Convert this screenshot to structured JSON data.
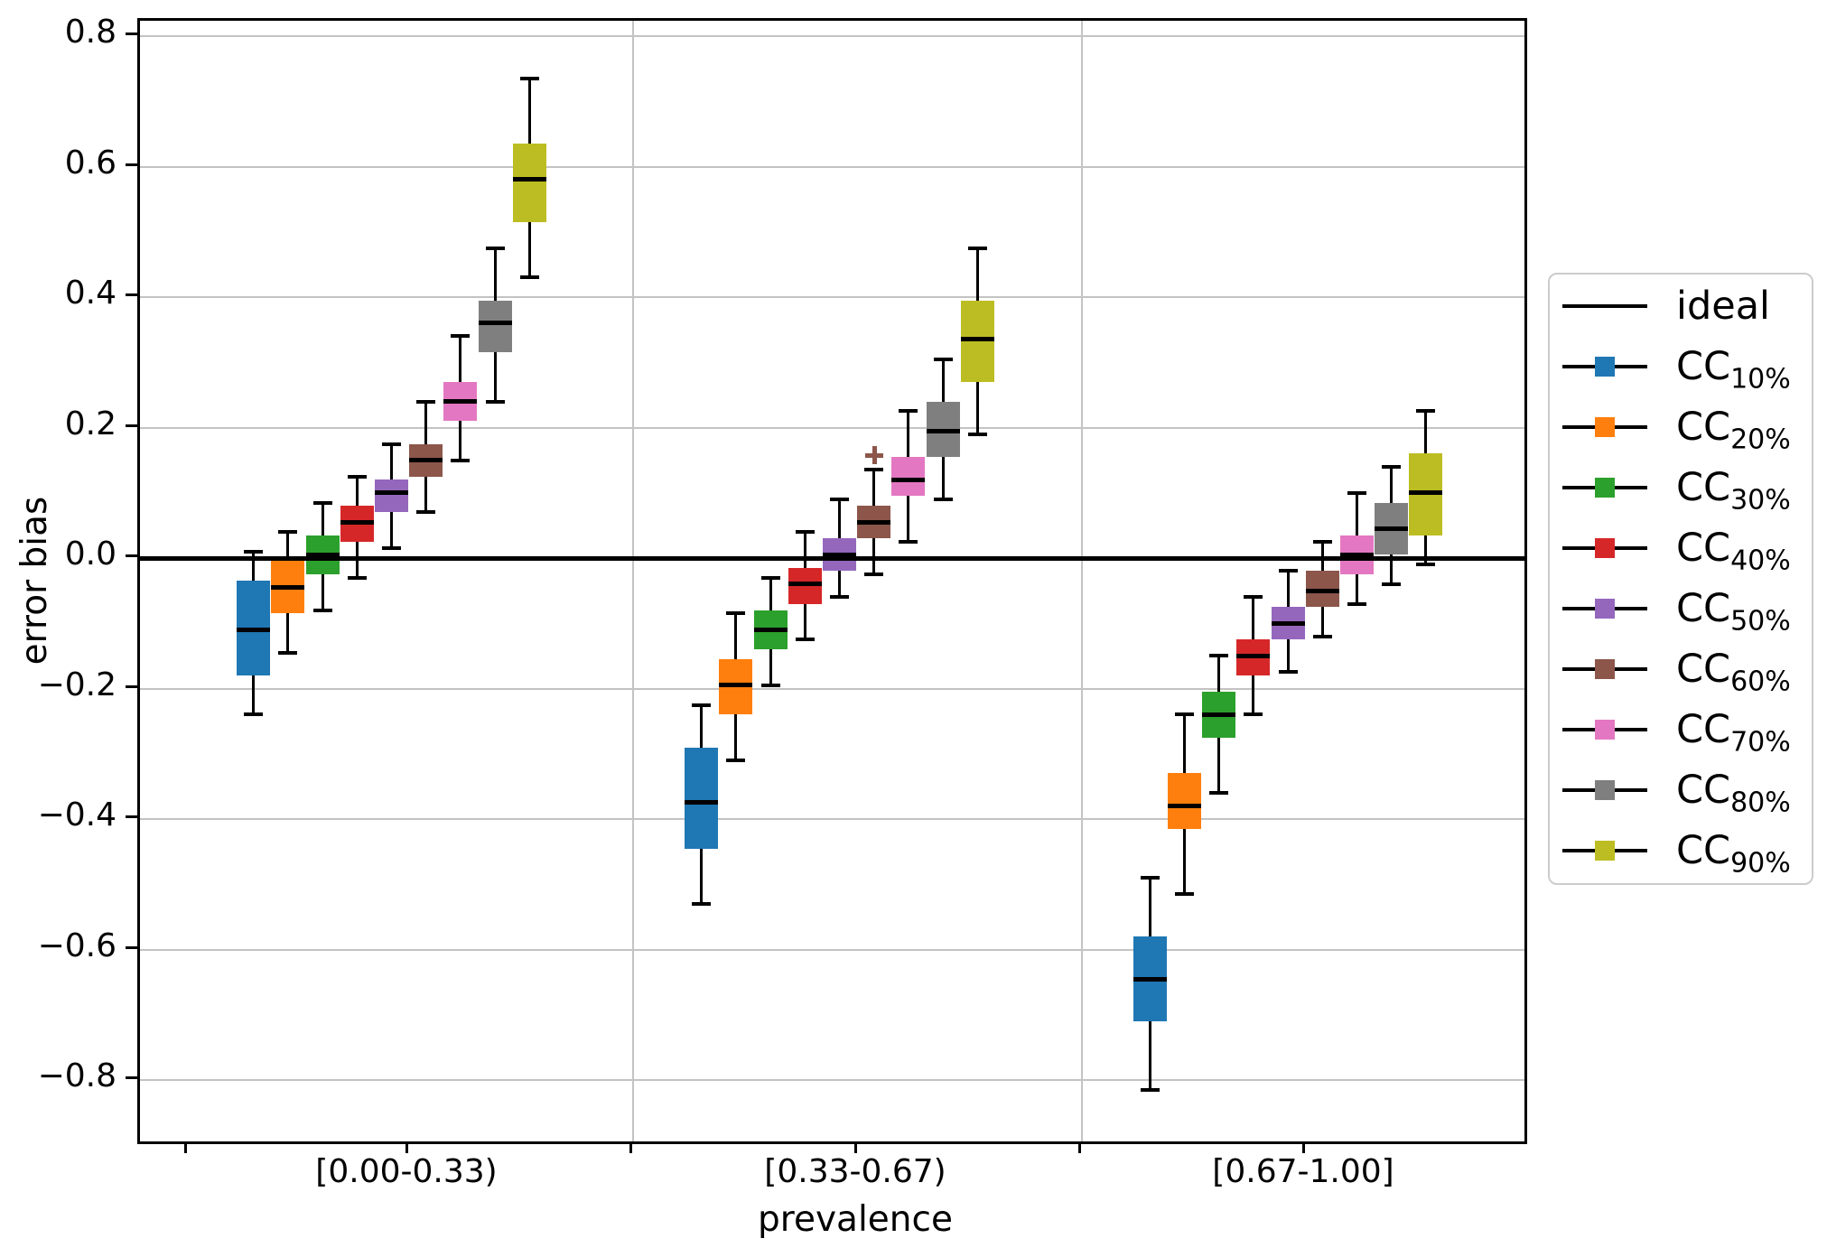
{
  "chart_data": {
    "type": "boxplot",
    "title": "",
    "xlabel": "prevalence",
    "ylabel": "error bias",
    "ylim": [
      -0.895,
      0.823
    ],
    "yticks": [
      0.8,
      0.6,
      0.4,
      0.2,
      0.0,
      -0.2,
      -0.4,
      -0.6,
      -0.8
    ],
    "grid": true,
    "legend_position": "center right",
    "categories": [
      "[0.00-0.33)",
      "[0.33-0.67)",
      "[0.67-1.00]"
    ],
    "ideal_line": {
      "label": "ideal",
      "y": 0.0,
      "color": "#000000"
    },
    "series": [
      {
        "name": "CC10%",
        "legend_base": "CC",
        "legend_sub": "10%",
        "color": "#1f77b4",
        "boxes": [
          {
            "whislo": -0.24,
            "q1": -0.18,
            "med": -0.11,
            "q3": -0.035,
            "whishi": 0.01,
            "fliers": []
          },
          {
            "whislo": -0.53,
            "q1": -0.445,
            "med": -0.375,
            "q3": -0.29,
            "whishi": -0.225,
            "fliers": []
          },
          {
            "whislo": -0.815,
            "q1": -0.71,
            "med": -0.645,
            "q3": -0.58,
            "whishi": -0.49,
            "fliers": []
          }
        ]
      },
      {
        "name": "CC20%",
        "legend_base": "CC",
        "legend_sub": "20%",
        "color": "#ff7f0e",
        "boxes": [
          {
            "whislo": -0.145,
            "q1": -0.085,
            "med": -0.045,
            "q3": 0.0,
            "whishi": 0.04,
            "fliers": []
          },
          {
            "whislo": -0.31,
            "q1": -0.24,
            "med": -0.195,
            "q3": -0.155,
            "whishi": -0.085,
            "fliers": []
          },
          {
            "whislo": -0.515,
            "q1": -0.415,
            "med": -0.38,
            "q3": -0.33,
            "whishi": -0.24,
            "fliers": []
          }
        ]
      },
      {
        "name": "CC30%",
        "legend_base": "CC",
        "legend_sub": "30%",
        "color": "#2ca02c",
        "boxes": [
          {
            "whislo": -0.08,
            "q1": -0.025,
            "med": 0.005,
            "q3": 0.035,
            "whishi": 0.085,
            "fliers": []
          },
          {
            "whislo": -0.195,
            "q1": -0.14,
            "med": -0.11,
            "q3": -0.08,
            "whishi": -0.03,
            "fliers": []
          },
          {
            "whislo": -0.36,
            "q1": -0.275,
            "med": -0.24,
            "q3": -0.205,
            "whishi": -0.15,
            "fliers": []
          }
        ]
      },
      {
        "name": "CC40%",
        "legend_base": "CC",
        "legend_sub": "40%",
        "color": "#d62728",
        "boxes": [
          {
            "whislo": -0.03,
            "q1": 0.025,
            "med": 0.055,
            "q3": 0.08,
            "whishi": 0.125,
            "fliers": []
          },
          {
            "whislo": -0.125,
            "q1": -0.07,
            "med": -0.04,
            "q3": -0.015,
            "whishi": 0.04,
            "fliers": []
          },
          {
            "whislo": -0.24,
            "q1": -0.18,
            "med": -0.15,
            "q3": -0.125,
            "whishi": -0.06,
            "fliers": []
          }
        ]
      },
      {
        "name": "CC50%",
        "legend_base": "CC",
        "legend_sub": "50%",
        "color": "#9467bd",
        "boxes": [
          {
            "whislo": 0.015,
            "q1": 0.07,
            "med": 0.1,
            "q3": 0.12,
            "whishi": 0.175,
            "fliers": []
          },
          {
            "whislo": -0.06,
            "q1": -0.02,
            "med": 0.005,
            "q3": 0.03,
            "whishi": 0.09,
            "fliers": []
          },
          {
            "whislo": -0.175,
            "q1": -0.125,
            "med": -0.1,
            "q3": -0.075,
            "whishi": -0.02,
            "fliers": []
          }
        ]
      },
      {
        "name": "CC60%",
        "legend_base": "CC",
        "legend_sub": "60%",
        "color": "#8c564b",
        "boxes": [
          {
            "whislo": 0.07,
            "q1": 0.125,
            "med": 0.15,
            "q3": 0.175,
            "whishi": 0.24,
            "fliers": []
          },
          {
            "whislo": -0.025,
            "q1": 0.03,
            "med": 0.055,
            "q3": 0.08,
            "whishi": 0.135,
            "fliers": [
              0.158
            ]
          },
          {
            "whislo": -0.12,
            "q1": -0.075,
            "med": -0.05,
            "q3": -0.02,
            "whishi": 0.025,
            "fliers": []
          }
        ]
      },
      {
        "name": "CC70%",
        "legend_base": "CC",
        "legend_sub": "70%",
        "color": "#e377c2",
        "boxes": [
          {
            "whislo": 0.15,
            "q1": 0.21,
            "med": 0.24,
            "q3": 0.27,
            "whishi": 0.34,
            "fliers": []
          },
          {
            "whislo": 0.025,
            "q1": 0.095,
            "med": 0.12,
            "q3": 0.155,
            "whishi": 0.225,
            "fliers": []
          },
          {
            "whislo": -0.07,
            "q1": -0.025,
            "med": 0.005,
            "q3": 0.035,
            "whishi": 0.1,
            "fliers": []
          }
        ]
      },
      {
        "name": "CC80%",
        "legend_base": "CC",
        "legend_sub": "80%",
        "color": "#7f7f7f",
        "boxes": [
          {
            "whislo": 0.24,
            "q1": 0.315,
            "med": 0.36,
            "q3": 0.395,
            "whishi": 0.475,
            "fliers": []
          },
          {
            "whislo": 0.09,
            "q1": 0.155,
            "med": 0.195,
            "q3": 0.24,
            "whishi": 0.305,
            "fliers": []
          },
          {
            "whislo": -0.04,
            "q1": 0.005,
            "med": 0.045,
            "q3": 0.085,
            "whishi": 0.14,
            "fliers": []
          }
        ]
      },
      {
        "name": "CC90%",
        "legend_base": "CC",
        "legend_sub": "90%",
        "color": "#bcbd22",
        "boxes": [
          {
            "whislo": 0.43,
            "q1": 0.515,
            "med": 0.58,
            "q3": 0.635,
            "whishi": 0.735,
            "fliers": []
          },
          {
            "whislo": 0.19,
            "q1": 0.27,
            "med": 0.335,
            "q3": 0.395,
            "whishi": 0.475,
            "fliers": []
          },
          {
            "whislo": -0.01,
            "q1": 0.035,
            "med": 0.1,
            "q3": 0.16,
            "whishi": 0.225,
            "fliers": []
          }
        ]
      }
    ]
  }
}
